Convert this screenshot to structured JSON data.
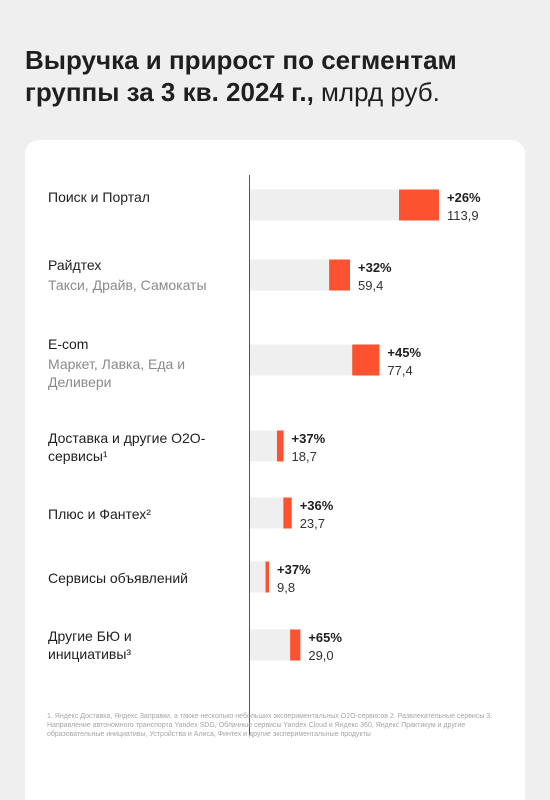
{
  "title": {
    "bold": "Выручка и прирост по сегментам группы за 3 кв. 2024 г.,",
    "light": "млрд руб."
  },
  "colors": {
    "bar": "#fc5230",
    "track": "#efefef",
    "axis": "#555555"
  },
  "chart_data": {
    "type": "bar",
    "orientation": "horizontal",
    "title": "Выручка и прирост по сегментам группы за 3 кв. 2024 г., млрд руб.",
    "categories": [
      "Поиск и Портал",
      "Райдтех",
      "E-com",
      "Доставка и другие O2O-сервисы",
      "Плюс и Фантех",
      "Сервисы объявлений",
      "Другие БЮ и инициативы"
    ],
    "values": [
      113.9,
      59.4,
      77.4,
      18.7,
      23.7,
      9.8,
      29.0
    ],
    "growth": [
      "+26%",
      "+32%",
      "+45%",
      "+37%",
      "+36%",
      "+37%",
      "+65%"
    ],
    "value_labels": [
      "113,9",
      "59,4",
      "77,4",
      "18,7",
      "23,7",
      "9,8",
      "29,0"
    ],
    "grid": false,
    "legend": "none"
  },
  "segments": [
    {
      "name": "Поиск и Портал",
      "sub": ""
    },
    {
      "name": "Райдтех",
      "sub": "Такси, Драйв, Самокаты"
    },
    {
      "name": "E-com",
      "sub": "Маркет, Лавка, Еда и Деливери"
    },
    {
      "name": "Доставка и другие O2O-сервисы¹",
      "sub": ""
    },
    {
      "name": "Плюс и Фантех²",
      "sub": ""
    },
    {
      "name": "Сервисы объявлений",
      "sub": ""
    },
    {
      "name": "Другие БЮ и инициативы³",
      "sub": ""
    }
  ],
  "footnote": "1. Яндекс Доставка, Яндекс Заправки, а также несколько небольших экспериментальных O2O-сервисов 2. Развлекательные сервисы 3. Направление автономного транспорта Yandex SDG, Облачные сервисы Yandex Cloud и Яндекс 360, Яндекс Практикум и другие образовательные инициативы, Устройства и Алиса, Финтех и другие экспериментальные продукты"
}
